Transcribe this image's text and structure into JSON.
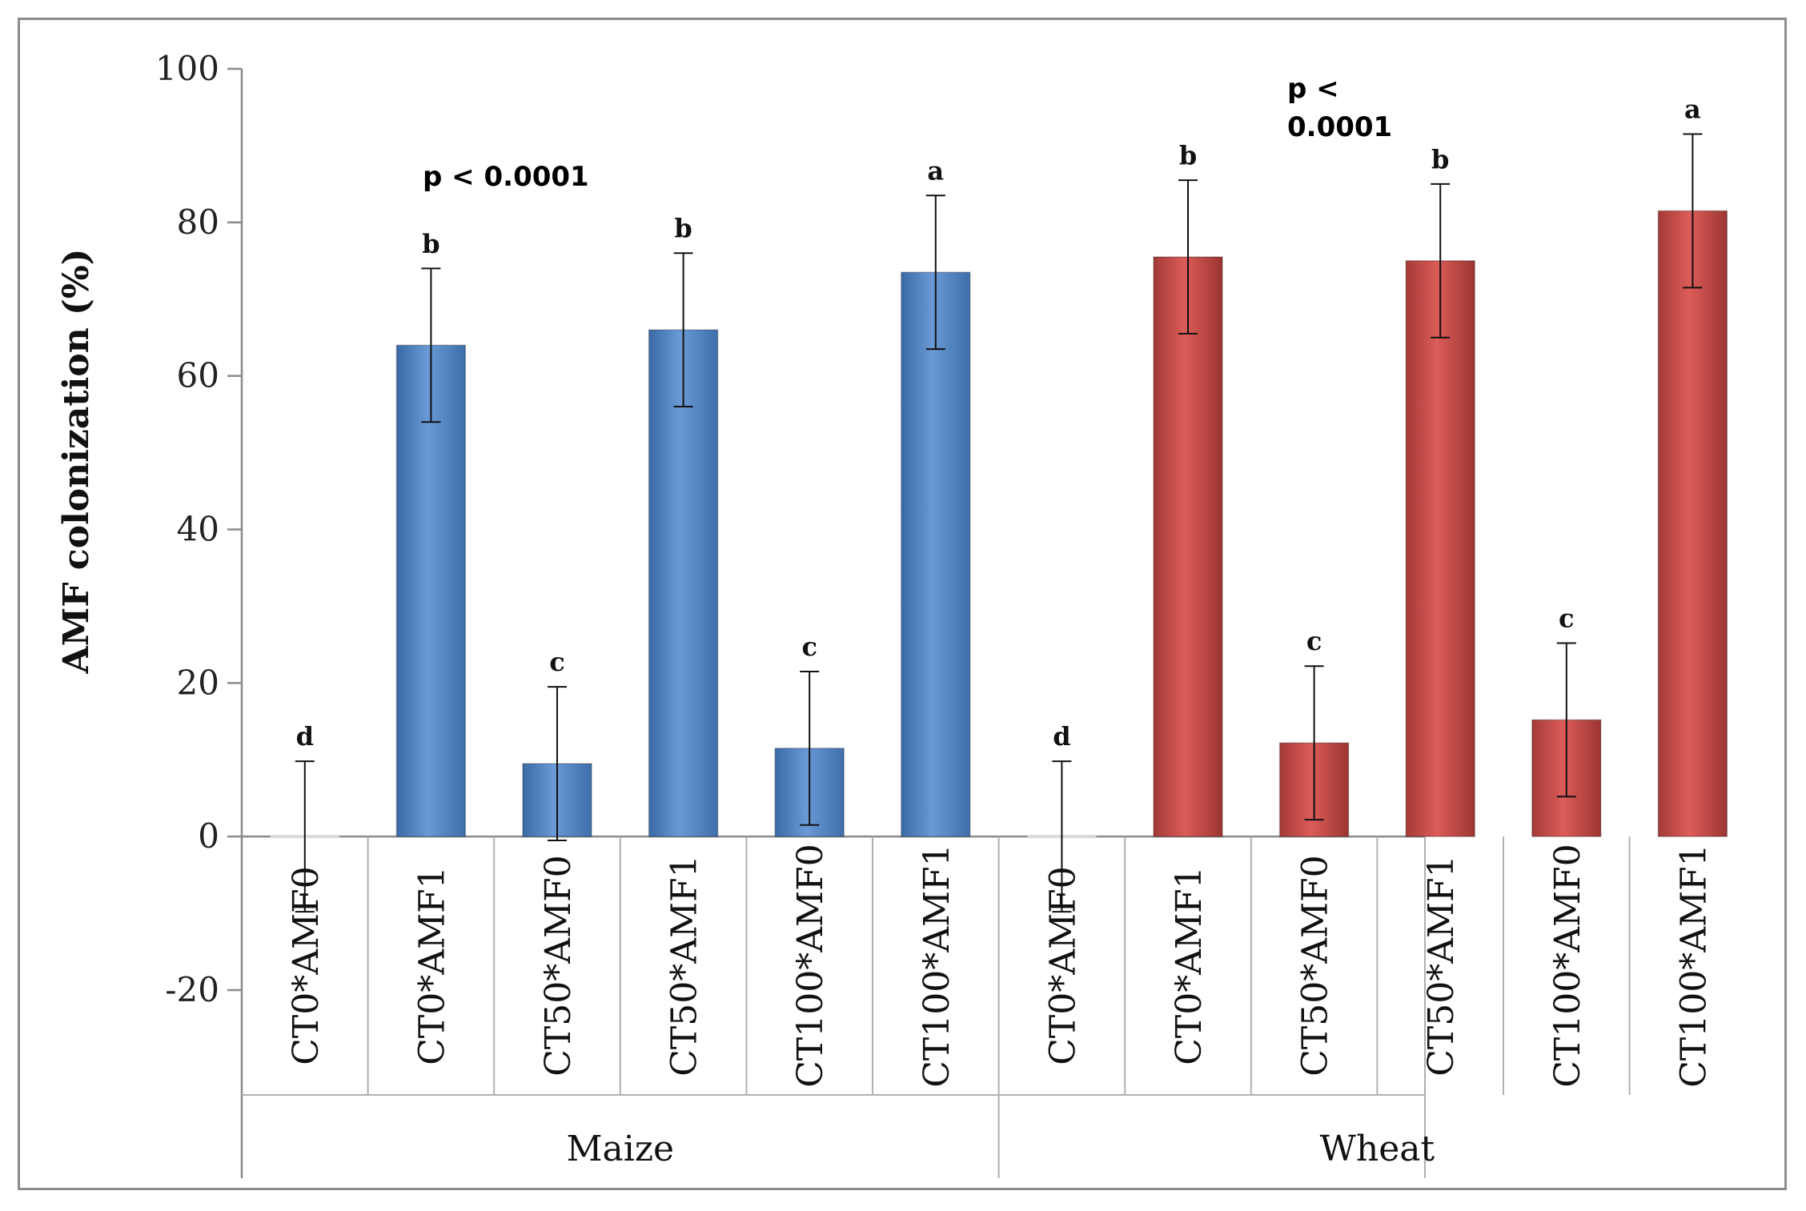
{
  "chart_data": {
    "type": "bar",
    "title": "",
    "xlabel": "",
    "ylabel": "AMF colonization (%)",
    "ylim": [
      -20,
      100
    ],
    "yticks": [
      -20,
      0,
      20,
      40,
      60,
      80,
      100
    ],
    "grid": false,
    "legend": "none",
    "categories": [
      "CT0*AMF0",
      "CT0*AMF1",
      "CT50*AMF0",
      "CT50*AMF1",
      "CT100*AMF0",
      "CT100*AMF1"
    ],
    "groups": [
      {
        "name": "Maize",
        "color": "#4f81bd",
        "values": [
          0,
          64,
          9.5,
          66,
          11.5,
          73.5
        ],
        "errors": [
          9.8,
          10,
          10,
          10,
          10,
          10
        ],
        "letters": [
          "d",
          "b",
          "c",
          "b",
          "c",
          "a"
        ],
        "p_value": "p  < 0.0001"
      },
      {
        "name": "Wheat",
        "color": "#c0504d",
        "values": [
          0,
          75.5,
          12.2,
          75,
          15.2,
          81.5
        ],
        "errors": [
          9.8,
          10,
          10,
          10,
          10,
          10
        ],
        "letters": [
          "d",
          "b",
          "c",
          "b",
          "c",
          "a"
        ],
        "p_value_lines": [
          "p <",
          "0.0001"
        ]
      }
    ]
  }
}
